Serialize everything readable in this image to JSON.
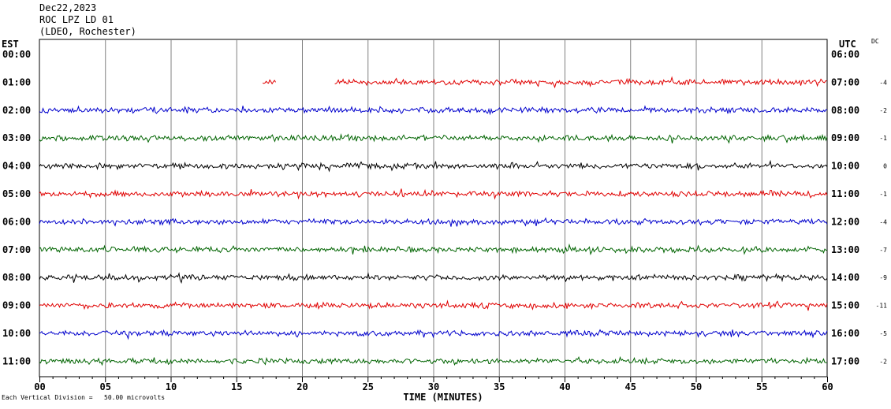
{
  "header": {
    "date": "Dec22,2023",
    "station": "ROC LPZ LD 01",
    "network": "(LDEO, Rochester)"
  },
  "left_tz": "EST",
  "right_tz": "UTC",
  "dc_label": "DC",
  "footer": "Each Vertical Division =   50.00 microvolts",
  "colors": {
    "red": "#e00000",
    "blue": "#0000cc",
    "green": "#006400",
    "black": "#000000",
    "grid": "#808080"
  },
  "chart_data": {
    "type": "line",
    "title": "",
    "xlabel": "TIME (MINUTES)",
    "xlim": [
      0,
      60
    ],
    "x_ticks": [
      "00",
      "05",
      "10",
      "15",
      "20",
      "25",
      "30",
      "35",
      "40",
      "45",
      "50",
      "55",
      "60"
    ],
    "rows": [
      {
        "est": "00:00",
        "utc": "06:00",
        "dc": "",
        "color": "red",
        "segments": []
      },
      {
        "est": "01:00",
        "utc": "07:00",
        "dc": "-4",
        "color": "red",
        "segments": [
          [
            17.0,
            18.0
          ],
          [
            22.5,
            60
          ]
        ]
      },
      {
        "est": "02:00",
        "utc": "08:00",
        "dc": "-2",
        "color": "blue",
        "segments": [
          [
            0,
            60
          ]
        ]
      },
      {
        "est": "03:00",
        "utc": "09:00",
        "dc": "-1",
        "color": "green",
        "segments": [
          [
            0,
            60
          ]
        ]
      },
      {
        "est": "04:00",
        "utc": "10:00",
        "dc": "0",
        "color": "black",
        "segments": [
          [
            0,
            60
          ]
        ]
      },
      {
        "est": "05:00",
        "utc": "11:00",
        "dc": "-1",
        "color": "red",
        "segments": [
          [
            0,
            60
          ]
        ]
      },
      {
        "est": "06:00",
        "utc": "12:00",
        "dc": "-4",
        "color": "blue",
        "segments": [
          [
            0,
            60
          ]
        ]
      },
      {
        "est": "07:00",
        "utc": "13:00",
        "dc": "-7",
        "color": "green",
        "segments": [
          [
            0,
            60
          ]
        ]
      },
      {
        "est": "08:00",
        "utc": "14:00",
        "dc": "-9",
        "color": "black",
        "segments": [
          [
            0,
            60
          ]
        ]
      },
      {
        "est": "09:00",
        "utc": "15:00",
        "dc": "-11",
        "color": "red",
        "segments": [
          [
            0,
            60
          ]
        ]
      },
      {
        "est": "10:00",
        "utc": "16:00",
        "dc": "-5",
        "color": "blue",
        "segments": [
          [
            0,
            60
          ]
        ]
      },
      {
        "est": "11:00",
        "utc": "17:00",
        "dc": "-2",
        "color": "green",
        "segments": [
          [
            0,
            60
          ]
        ]
      }
    ]
  }
}
